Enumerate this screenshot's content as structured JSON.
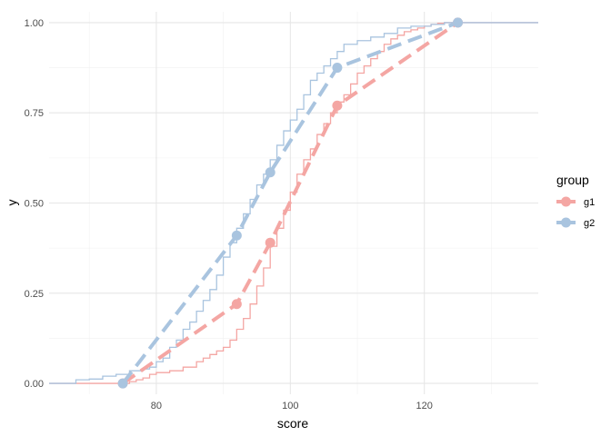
{
  "chart_data": {
    "type": "line",
    "xlabel": "score",
    "ylabel": "y",
    "xlim": [
      64,
      137
    ],
    "ylim": [
      -0.03,
      1.03
    ],
    "x_ticks": [
      80,
      100,
      120
    ],
    "x_tick_labels": [
      "80",
      "100",
      "120"
    ],
    "x_minor_ticks": [
      70,
      90,
      110,
      130
    ],
    "y_ticks": [
      0,
      0.25,
      0.5,
      0.75,
      1
    ],
    "y_tick_labels": [
      "0.00",
      "0.25",
      "0.50",
      "0.75",
      "1.00"
    ],
    "y_minor_ticks": [
      0.125,
      0.375,
      0.625,
      0.875
    ],
    "grid": true,
    "legend": {
      "title": "group",
      "position": "right",
      "entries": [
        "g1",
        "g2"
      ]
    },
    "colors": {
      "g1": "#f4a6a3",
      "g2": "#a9c4df"
    },
    "series": [
      {
        "name": "g1",
        "ecdf": [
          [
            64,
            0
          ],
          [
            75,
            0
          ],
          [
            76,
            0.005
          ],
          [
            77,
            0.01
          ],
          [
            78,
            0.015
          ],
          [
            79,
            0.025
          ],
          [
            80,
            0.03
          ],
          [
            82,
            0.035
          ],
          [
            84,
            0.045
          ],
          [
            86,
            0.06
          ],
          [
            87,
            0.07
          ],
          [
            88,
            0.08
          ],
          [
            89,
            0.09
          ],
          [
            90,
            0.1
          ],
          [
            91,
            0.12
          ],
          [
            92,
            0.15
          ],
          [
            93,
            0.18
          ],
          [
            94,
            0.22
          ],
          [
            95,
            0.27
          ],
          [
            96,
            0.32
          ],
          [
            97,
            0.38
          ],
          [
            98,
            0.43
          ],
          [
            99,
            0.48
          ],
          [
            100,
            0.53
          ],
          [
            101,
            0.58
          ],
          [
            102,
            0.62
          ],
          [
            103,
            0.65
          ],
          [
            104,
            0.69
          ],
          [
            105,
            0.72
          ],
          [
            106,
            0.75
          ],
          [
            107,
            0.78
          ],
          [
            108,
            0.8
          ],
          [
            109,
            0.83
          ],
          [
            110,
            0.86
          ],
          [
            111,
            0.88
          ],
          [
            112,
            0.9
          ],
          [
            113,
            0.92
          ],
          [
            114,
            0.94
          ],
          [
            115,
            0.955
          ],
          [
            116,
            0.965
          ],
          [
            117,
            0.975
          ],
          [
            118,
            0.98
          ],
          [
            119,
            0.985
          ],
          [
            120,
            0.99
          ],
          [
            121,
            0.995
          ],
          [
            122,
            0.998
          ],
          [
            123,
            1
          ],
          [
            137,
            1
          ]
        ],
        "quantile_x": [
          75,
          92,
          97,
          107,
          125
        ],
        "quantile_y": [
          0,
          0.22,
          0.39,
          0.77,
          1
        ]
      },
      {
        "name": "g2",
        "ecdf": [
          [
            64,
            0
          ],
          [
            67,
            0
          ],
          [
            68,
            0.01
          ],
          [
            70,
            0.012
          ],
          [
            72,
            0.02
          ],
          [
            74,
            0.025
          ],
          [
            76,
            0.035
          ],
          [
            78,
            0.04
          ],
          [
            79,
            0.045
          ],
          [
            80,
            0.06
          ],
          [
            81,
            0.07
          ],
          [
            82,
            0.1
          ],
          [
            83,
            0.12
          ],
          [
            84,
            0.15
          ],
          [
            85,
            0.17
          ],
          [
            86,
            0.2
          ],
          [
            87,
            0.23
          ],
          [
            88,
            0.26
          ],
          [
            89,
            0.3
          ],
          [
            90,
            0.35
          ],
          [
            91,
            0.39
          ],
          [
            92,
            0.43
          ],
          [
            93,
            0.47
          ],
          [
            94,
            0.51
          ],
          [
            95,
            0.55
          ],
          [
            96,
            0.58
          ],
          [
            97,
            0.62
          ],
          [
            98,
            0.66
          ],
          [
            99,
            0.7
          ],
          [
            100,
            0.73
          ],
          [
            101,
            0.76
          ],
          [
            102,
            0.8
          ],
          [
            103,
            0.84
          ],
          [
            104,
            0.86
          ],
          [
            105,
            0.88
          ],
          [
            106,
            0.9
          ],
          [
            107,
            0.92
          ],
          [
            108,
            0.94
          ],
          [
            110,
            0.95
          ],
          [
            112,
            0.96
          ],
          [
            114,
            0.97
          ],
          [
            116,
            0.985
          ],
          [
            118,
            0.99
          ],
          [
            121,
            0.995
          ],
          [
            123,
            1
          ],
          [
            137,
            1
          ]
        ],
        "quantile_x": [
          75,
          92,
          97,
          107,
          125
        ],
        "quantile_y": [
          0,
          0.41,
          0.585,
          0.875,
          1
        ]
      }
    ]
  }
}
